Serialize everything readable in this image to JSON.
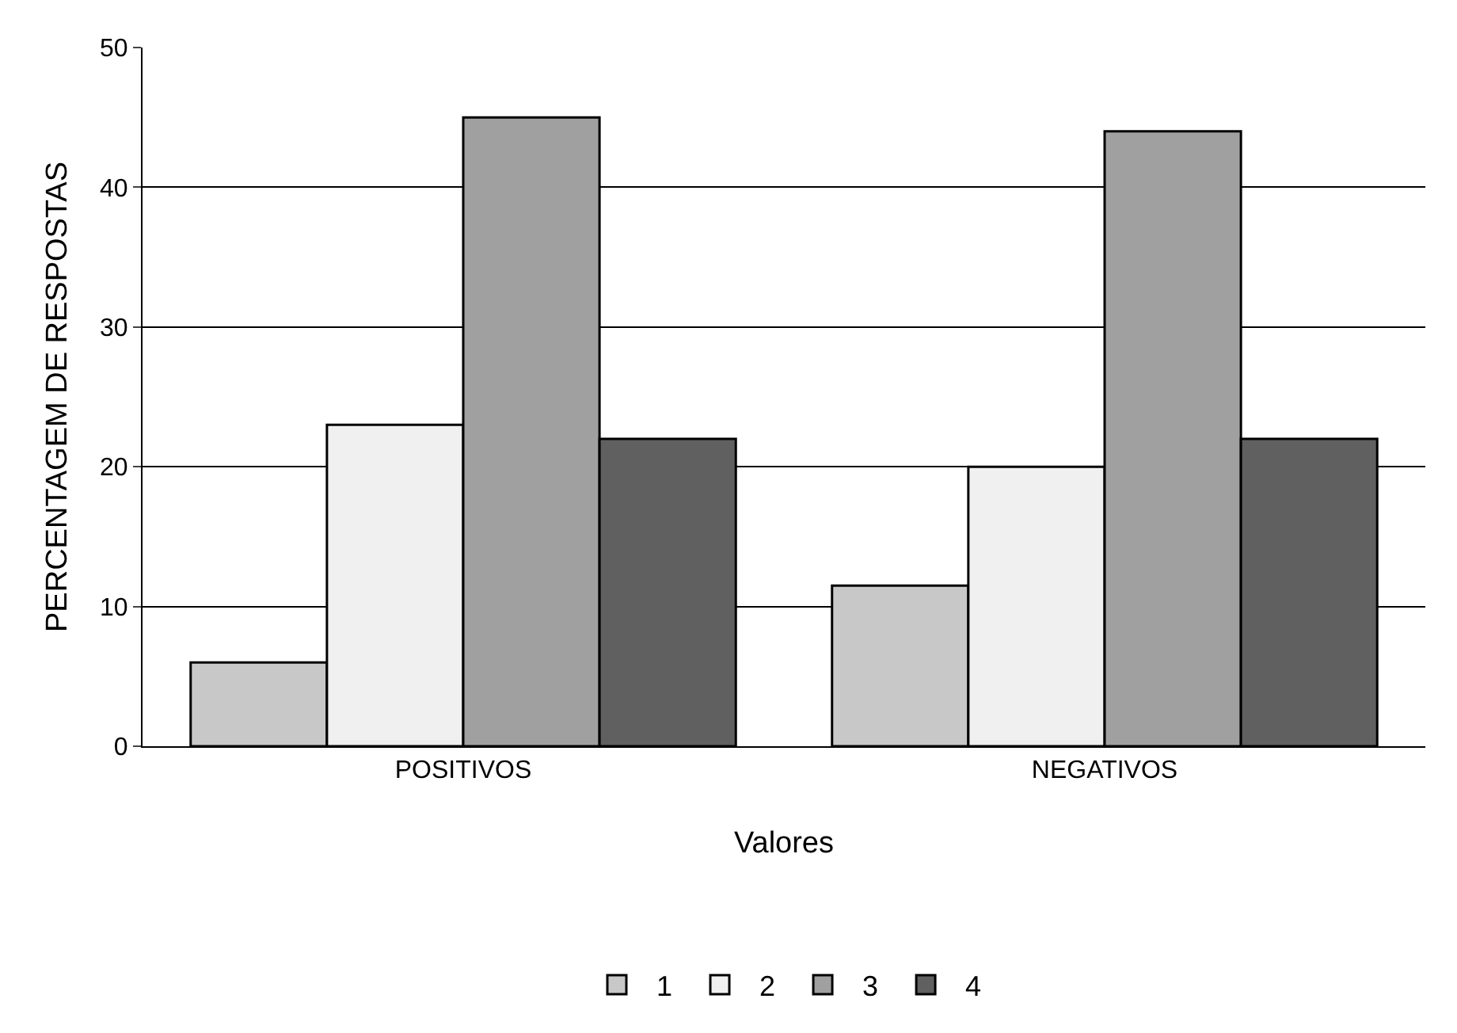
{
  "chart_data": {
    "type": "bar",
    "categories": [
      "POSITIVOS",
      "NEGATIVOS"
    ],
    "series": [
      {
        "name": "1",
        "color": "#c8c8c8",
        "values": [
          6,
          11.5
        ]
      },
      {
        "name": "2",
        "color": "#f0f0f0",
        "values": [
          23,
          20
        ]
      },
      {
        "name": "3",
        "color": "#a0a0a0",
        "values": [
          45,
          44
        ]
      },
      {
        "name": "4",
        "color": "#606060",
        "values": [
          22,
          22
        ]
      }
    ],
    "ylabel": "PERCENTAGEM DE RESPOSTAS",
    "xlabel": "Valores",
    "ylim": [
      0,
      50
    ],
    "yticks": [
      0,
      10,
      20,
      30,
      40,
      50
    ],
    "grid": "y",
    "legend": "bottom"
  }
}
